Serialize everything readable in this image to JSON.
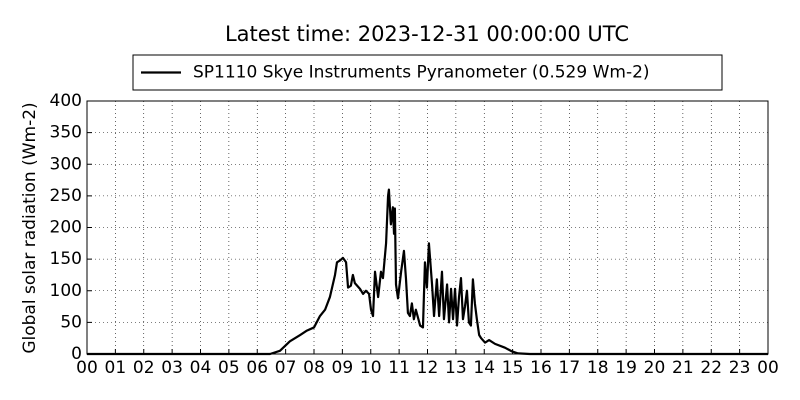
{
  "chart_data": {
    "type": "line",
    "title": "Latest time: 2023-12-31 00:00:00 UTC",
    "ylabel": "Global solar radiation (Wm-2)",
    "legend": "upper center",
    "grid": true,
    "xlim": [
      0,
      24
    ],
    "ylim": [
      0,
      400
    ],
    "yticks": [
      0,
      50,
      100,
      150,
      200,
      250,
      300,
      350,
      400
    ],
    "xticks": [
      {
        "value": 0,
        "label": "00"
      },
      {
        "value": 1,
        "label": "01"
      },
      {
        "value": 2,
        "label": "02"
      },
      {
        "value": 3,
        "label": "03"
      },
      {
        "value": 4,
        "label": "04"
      },
      {
        "value": 5,
        "label": "05"
      },
      {
        "value": 6,
        "label": "06"
      },
      {
        "value": 7,
        "label": "07"
      },
      {
        "value": 8,
        "label": "08"
      },
      {
        "value": 9,
        "label": "09"
      },
      {
        "value": 10,
        "label": "10"
      },
      {
        "value": 11,
        "label": "11"
      },
      {
        "value": 12,
        "label": "12"
      },
      {
        "value": 13,
        "label": "13"
      },
      {
        "value": 14,
        "label": "14"
      },
      {
        "value": 15,
        "label": "15"
      },
      {
        "value": 16,
        "label": "16"
      },
      {
        "value": 17,
        "label": "17"
      },
      {
        "value": 18,
        "label": "18"
      },
      {
        "value": 19,
        "label": "19"
      },
      {
        "value": 20,
        "label": "20"
      },
      {
        "value": 21,
        "label": "21"
      },
      {
        "value": 22,
        "label": "22"
      },
      {
        "value": 23,
        "label": "23"
      },
      {
        "value": 24,
        "label": "00"
      }
    ],
    "x": [
      0,
      6.0,
      6.45,
      6.8,
      7.15,
      7.51,
      7.75,
      8.0,
      8.21,
      8.39,
      8.56,
      8.74,
      8.81,
      8.92,
      9.02,
      9.13,
      9.2,
      9.3,
      9.37,
      9.44,
      9.62,
      9.73,
      9.83,
      9.94,
      10.01,
      10.08,
      10.15,
      10.26,
      10.36,
      10.43,
      10.54,
      10.61,
      10.64,
      10.71,
      10.78,
      10.82,
      10.85,
      10.89,
      10.96,
      11.07,
      11.17,
      11.24,
      11.31,
      11.38,
      11.45,
      11.52,
      11.59,
      11.74,
      11.84,
      11.91,
      11.98,
      12.05,
      12.16,
      12.23,
      12.33,
      12.41,
      12.51,
      12.58,
      12.69,
      12.76,
      12.83,
      12.9,
      12.97,
      13.04,
      13.11,
      13.18,
      13.25,
      13.32,
      13.39,
      13.46,
      13.53,
      13.6,
      13.67,
      13.74,
      13.82,
      13.89,
      14.03,
      14.17,
      14.38,
      14.73,
      14.98,
      15.19,
      15.61,
      24
    ],
    "series": [
      {
        "name": "SP1110 Skye Instruments Pyranometer (0.529 Wm-2)",
        "color": "#000000",
        "values": [
          0,
          0,
          0,
          5,
          20,
          30,
          37,
          42,
          60,
          70,
          90,
          125,
          145,
          148,
          152,
          145,
          105,
          108,
          125,
          112,
          103,
          95,
          100,
          95,
          70,
          60,
          130,
          90,
          130,
          120,
          175,
          250,
          260,
          205,
          232,
          190,
          230,
          110,
          88,
          130,
          163,
          120,
          65,
          60,
          80,
          55,
          70,
          45,
          42,
          145,
          105,
          175,
          110,
          60,
          118,
          60,
          130,
          55,
          110,
          50,
          103,
          55,
          103,
          45,
          90,
          120,
          55,
          75,
          100,
          50,
          45,
          118,
          80,
          55,
          30,
          25,
          18,
          22,
          16,
          10,
          4,
          1,
          0,
          0
        ]
      }
    ]
  }
}
